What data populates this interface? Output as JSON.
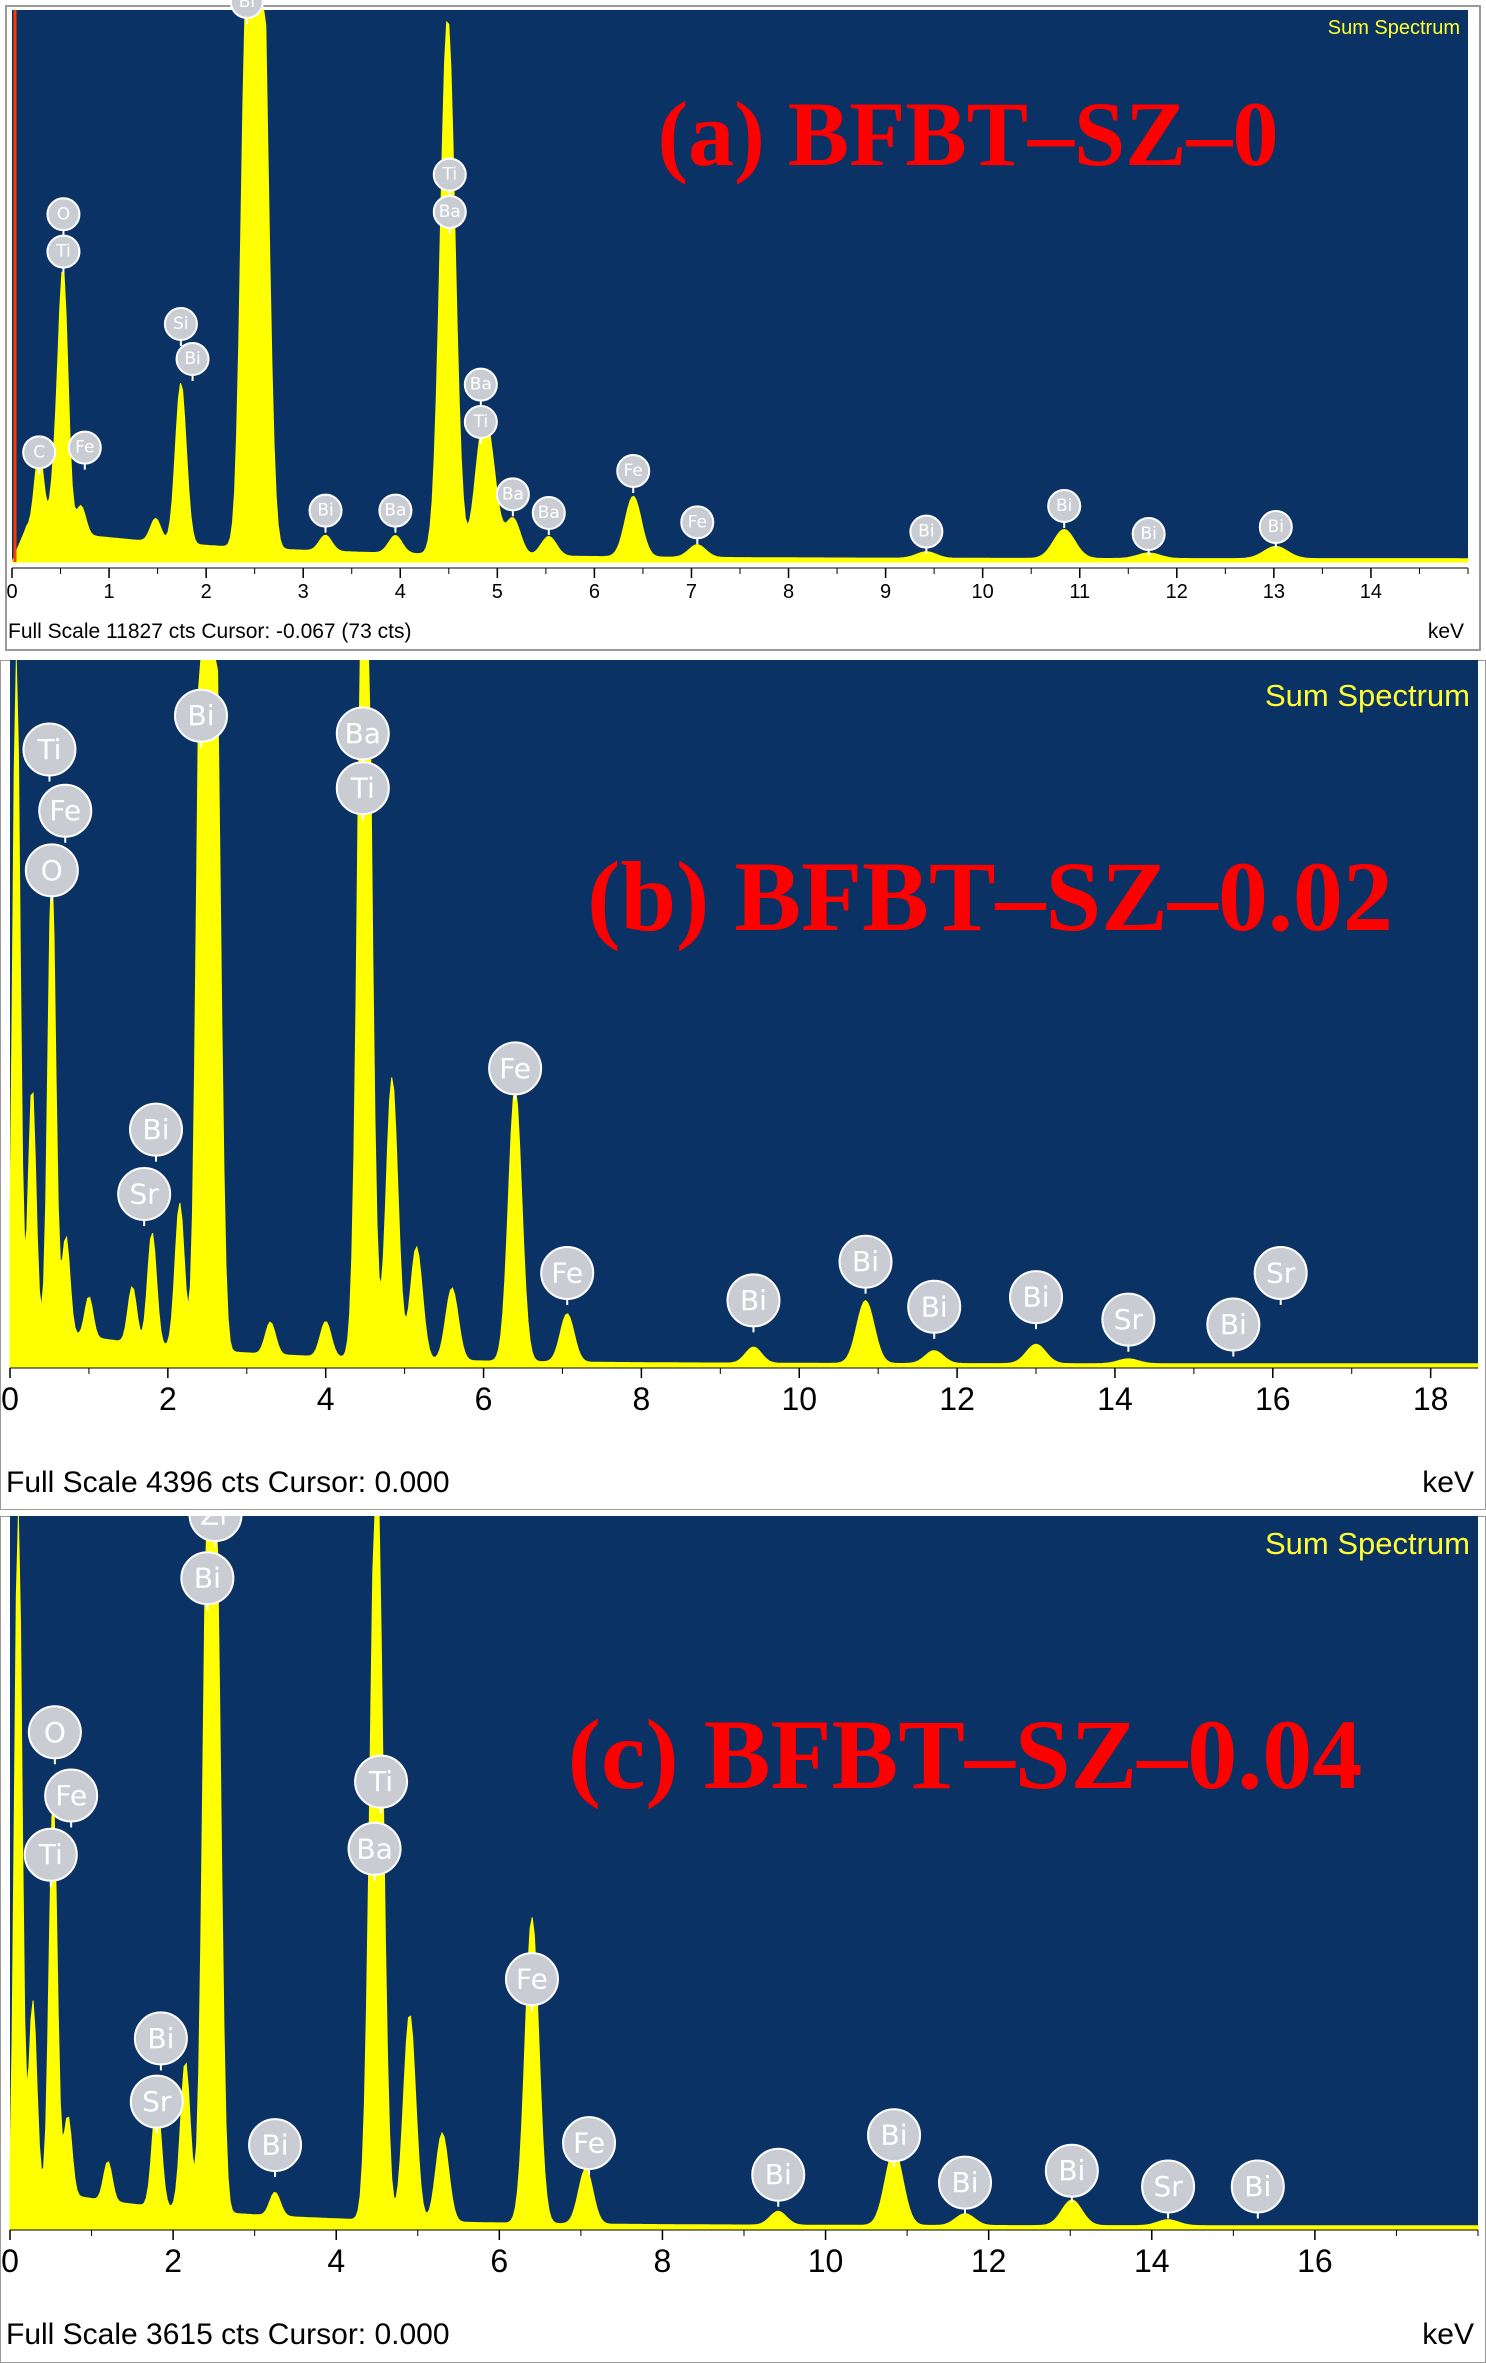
{
  "colors": {
    "plot_bg": "#0b3264",
    "spectrum": "#ffff00",
    "title": "#ff0000",
    "label_text": "#ffff33"
  },
  "chart_data": [
    {
      "type": "area",
      "title": "(a) BFBT–SZ–0",
      "corner_label": "Sum Spectrum",
      "footer": "Full Scale 11827 cts Cursor: -0.067  (73 cts)",
      "unit": "keV",
      "xlim": [
        0,
        15
      ],
      "ylim": [
        0,
        11827
      ],
      "xticks": [
        0,
        1,
        2,
        3,
        4,
        5,
        6,
        7,
        8,
        9,
        10,
        11,
        12,
        13,
        14
      ],
      "peaks": [
        {
          "x": 0.28,
          "y": 1700
        },
        {
          "x": 0.45,
          "y": 1250
        },
        {
          "x": 0.53,
          "y": 5350
        },
        {
          "x": 0.71,
          "y": 620
        },
        {
          "x": 1.48,
          "y": 500
        },
        {
          "x": 1.74,
          "y": 3450
        },
        {
          "x": 2.42,
          "y": 11600
        },
        {
          "x": 2.53,
          "y": 9000
        },
        {
          "x": 2.6,
          "y": 8000
        },
        {
          "x": 3.23,
          "y": 340
        },
        {
          "x": 3.95,
          "y": 380
        },
        {
          "x": 4.47,
          "y": 6450
        },
        {
          "x": 4.51,
          "y": 5500
        },
        {
          "x": 4.83,
          "y": 2000
        },
        {
          "x": 4.93,
          "y": 1700
        },
        {
          "x": 5.16,
          "y": 800
        },
        {
          "x": 5.53,
          "y": 420
        },
        {
          "x": 6.4,
          "y": 1300
        },
        {
          "x": 7.06,
          "y": 270
        },
        {
          "x": 9.42,
          "y": 140
        },
        {
          "x": 10.84,
          "y": 620
        },
        {
          "x": 11.71,
          "y": 120
        },
        {
          "x": 13.02,
          "y": 260
        }
      ],
      "element_labels": [
        {
          "text": "C",
          "x": 0.28,
          "y": 2350
        },
        {
          "text": "O",
          "x": 0.53,
          "y": 7450
        },
        {
          "text": "Ti",
          "x": 0.53,
          "y": 6650
        },
        {
          "text": "Fe",
          "x": 0.75,
          "y": 2450
        },
        {
          "text": "Si",
          "x": 1.74,
          "y": 5100
        },
        {
          "text": "Bi",
          "x": 1.86,
          "y": 4350
        },
        {
          "text": "Bi",
          "x": 2.42,
          "y": 12000
        },
        {
          "text": "Bi",
          "x": 3.23,
          "y": 1100
        },
        {
          "text": "Ba",
          "x": 3.95,
          "y": 1100
        },
        {
          "text": "Ti",
          "x": 4.51,
          "y": 8300
        },
        {
          "text": "Ba",
          "x": 4.51,
          "y": 7500
        },
        {
          "text": "Ba",
          "x": 4.83,
          "y": 3800
        },
        {
          "text": "Ti",
          "x": 4.83,
          "y": 3000
        },
        {
          "text": "Ba",
          "x": 5.16,
          "y": 1450
        },
        {
          "text": "Ba",
          "x": 5.53,
          "y": 1050
        },
        {
          "text": "Fe",
          "x": 6.4,
          "y": 1950
        },
        {
          "text": "Fe",
          "x": 7.06,
          "y": 850
        },
        {
          "text": "Bi",
          "x": 9.42,
          "y": 650
        },
        {
          "text": "Bi",
          "x": 10.84,
          "y": 1200
        },
        {
          "text": "Bi",
          "x": 11.71,
          "y": 600
        },
        {
          "text": "Bi",
          "x": 13.02,
          "y": 750
        }
      ]
    },
    {
      "type": "area",
      "title": "(b) BFBT–SZ–0.02",
      "corner_label": "Sum Spectrum",
      "footer": "Full Scale 4396 cts Cursor: 0.000",
      "unit": "keV",
      "xlim": [
        0,
        18.6
      ],
      "ylim": [
        0,
        4396
      ],
      "xticks": [
        0,
        2,
        4,
        6,
        8,
        10,
        12,
        14,
        16,
        18
      ],
      "peaks": [
        {
          "x": 0.08,
          "y": 4300
        },
        {
          "x": 0.28,
          "y": 1500
        },
        {
          "x": 0.53,
          "y": 2900
        },
        {
          "x": 0.71,
          "y": 600
        },
        {
          "x": 1.0,
          "y": 250
        },
        {
          "x": 1.55,
          "y": 350
        },
        {
          "x": 1.8,
          "y": 700
        },
        {
          "x": 2.15,
          "y": 900
        },
        {
          "x": 2.42,
          "y": 4300
        },
        {
          "x": 2.53,
          "y": 3900
        },
        {
          "x": 2.62,
          "y": 3300
        },
        {
          "x": 3.3,
          "y": 200
        },
        {
          "x": 4.0,
          "y": 220
        },
        {
          "x": 4.47,
          "y": 3400
        },
        {
          "x": 4.52,
          "y": 3150
        },
        {
          "x": 4.84,
          "y": 1750
        },
        {
          "x": 5.15,
          "y": 700
        },
        {
          "x": 5.6,
          "y": 450
        },
        {
          "x": 6.4,
          "y": 1700
        },
        {
          "x": 7.06,
          "y": 300
        },
        {
          "x": 9.42,
          "y": 100
        },
        {
          "x": 10.84,
          "y": 390
        },
        {
          "x": 11.71,
          "y": 80
        },
        {
          "x": 13.0,
          "y": 120
        },
        {
          "x": 14.17,
          "y": 30
        }
      ],
      "element_labels": [
        {
          "text": "Bi",
          "x": 2.42,
          "y": 4050
        },
        {
          "text": "Ba",
          "x": 4.47,
          "y": 3940
        },
        {
          "text": "Ti",
          "x": 4.47,
          "y": 3600
        },
        {
          "text": "Ti",
          "x": 0.5,
          "y": 3840
        },
        {
          "text": "Fe",
          "x": 0.7,
          "y": 3460
        },
        {
          "text": "O",
          "x": 0.53,
          "y": 3090
        },
        {
          "text": "Bi",
          "x": 1.85,
          "y": 1480
        },
        {
          "text": "Sr",
          "x": 1.7,
          "y": 1080
        },
        {
          "text": "Fe",
          "x": 6.4,
          "y": 1860
        },
        {
          "text": "Fe",
          "x": 7.06,
          "y": 590
        },
        {
          "text": "Bi",
          "x": 9.42,
          "y": 420
        },
        {
          "text": "Bi",
          "x": 10.84,
          "y": 660
        },
        {
          "text": "Bi",
          "x": 11.71,
          "y": 380
        },
        {
          "text": "Bi",
          "x": 13.0,
          "y": 440
        },
        {
          "text": "Sr",
          "x": 14.17,
          "y": 300
        },
        {
          "text": "Bi",
          "x": 15.5,
          "y": 270
        },
        {
          "text": "Sr",
          "x": 16.1,
          "y": 590
        }
      ]
    },
    {
      "type": "area",
      "title": "(c) BFBT–SZ–0.04",
      "corner_label": "Sum Spectrum",
      "footer": "Full Scale 3615 cts Cursor: 0.000",
      "unit": "keV",
      "xlim": [
        0,
        18
      ],
      "ylim": [
        0,
        3615
      ],
      "xticks": [
        0,
        2,
        4,
        6,
        8,
        10,
        12,
        14,
        16
      ],
      "peaks": [
        {
          "x": 0.1,
          "y": 3500
        },
        {
          "x": 0.28,
          "y": 950
        },
        {
          "x": 0.53,
          "y": 2000
        },
        {
          "x": 0.71,
          "y": 400
        },
        {
          "x": 1.2,
          "y": 200
        },
        {
          "x": 1.8,
          "y": 550
        },
        {
          "x": 2.15,
          "y": 750
        },
        {
          "x": 2.42,
          "y": 3300
        },
        {
          "x": 2.53,
          "y": 3100
        },
        {
          "x": 3.25,
          "y": 120
        },
        {
          "x": 4.47,
          "y": 2150
        },
        {
          "x": 4.52,
          "y": 2000
        },
        {
          "x": 4.9,
          "y": 1050
        },
        {
          "x": 5.3,
          "y": 450
        },
        {
          "x": 6.4,
          "y": 1550
        },
        {
          "x": 7.06,
          "y": 280
        },
        {
          "x": 9.42,
          "y": 70
        },
        {
          "x": 10.84,
          "y": 380
        },
        {
          "x": 11.71,
          "y": 60
        },
        {
          "x": 13.02,
          "y": 130
        },
        {
          "x": 14.2,
          "y": 30
        }
      ],
      "element_labels": [
        {
          "text": "Zr",
          "x": 2.52,
          "y": 3620
        },
        {
          "text": "Bi",
          "x": 2.42,
          "y": 3300
        },
        {
          "text": "O",
          "x": 0.55,
          "y": 2520
        },
        {
          "text": "Fe",
          "x": 0.75,
          "y": 2200
        },
        {
          "text": "Ti",
          "x": 0.5,
          "y": 1900
        },
        {
          "text": "Ti",
          "x": 4.55,
          "y": 2270
        },
        {
          "text": "Ba",
          "x": 4.47,
          "y": 1930
        },
        {
          "text": "Bi",
          "x": 1.85,
          "y": 970
        },
        {
          "text": "Sr",
          "x": 1.8,
          "y": 650
        },
        {
          "text": "Bi",
          "x": 3.25,
          "y": 430
        },
        {
          "text": "Fe",
          "x": 6.4,
          "y": 1270
        },
        {
          "text": "Fe",
          "x": 7.1,
          "y": 440
        },
        {
          "text": "Bi",
          "x": 9.42,
          "y": 280
        },
        {
          "text": "Bi",
          "x": 10.84,
          "y": 480
        },
        {
          "text": "Bi",
          "x": 11.71,
          "y": 240
        },
        {
          "text": "Bi",
          "x": 13.02,
          "y": 300
        },
        {
          "text": "Sr",
          "x": 14.2,
          "y": 220
        },
        {
          "text": "Bi",
          "x": 15.3,
          "y": 220
        }
      ]
    }
  ]
}
